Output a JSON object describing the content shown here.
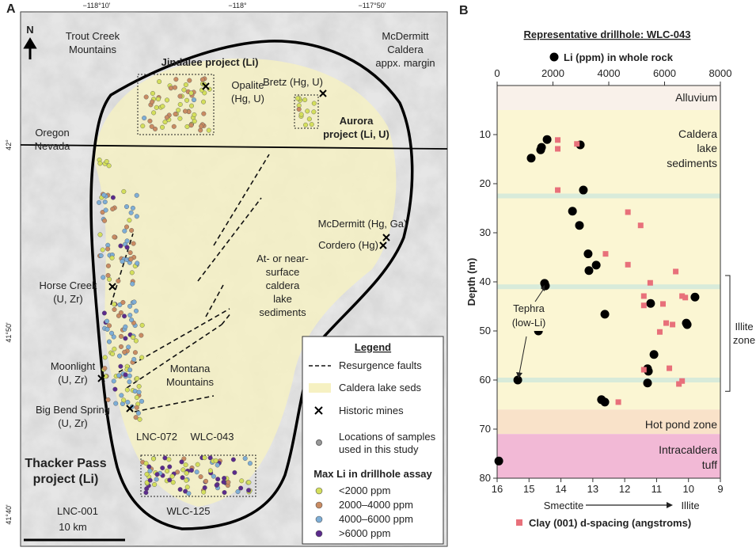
{
  "map": {
    "panel": "A",
    "lon_ticks": [
      "−118°10'",
      "−118°",
      "−117°50'"
    ],
    "lat_ticks": [
      "42°",
      "41°50'",
      "41°40'"
    ],
    "north": "N",
    "labels": [
      [
        "Trout Creek",
        "Mountains"
      ],
      [
        "Jindalee project (Li)"
      ],
      [
        "McDermitt",
        "Caldera",
        "appx. margin"
      ],
      [
        "Opalite",
        "(Hg, U)"
      ],
      [
        "Bretz (Hg, U)"
      ],
      [
        "Aurora",
        "project (Li, U)"
      ],
      [
        "Oregon",
        "Nevada"
      ],
      [
        "McDermitt (Hg, Ga)"
      ],
      [
        "Cordero (Hg)"
      ],
      [
        "At- or near-",
        "surface",
        "caldera",
        "lake",
        "sediments"
      ],
      [
        "Horse Creek",
        "(U, Zr)"
      ],
      [
        "Moonlight",
        "(U, Zr)"
      ],
      [
        "Montana",
        "Mountains"
      ],
      [
        "Big Bend Spring",
        "(U, Zr)"
      ],
      [
        "LNC-072"
      ],
      [
        "WLC-043"
      ],
      [
        "Thacker Pass",
        "project (Li)"
      ],
      [
        "LNC-001"
      ],
      [
        "WLC-125"
      ],
      [
        "10 km"
      ]
    ],
    "legend": {
      "title": "Legend",
      "items": [
        [
          "Resurgence faults"
        ],
        [
          "Caldera lake seds"
        ],
        [
          "Historic mines"
        ],
        [
          "Locations of samples",
          "used in this study"
        ]
      ],
      "assay_title": "Max Li in drillhole assay",
      "assay": [
        {
          "label": "<2000 ppm",
          "color": "#d4df5c"
        },
        {
          "label": "2000–4000 ppm",
          "color": "#c98b62"
        },
        {
          "label": "4000–6000 ppm",
          "color": "#7eaed6"
        },
        {
          "label": ">6000 ppm",
          "color": "#5b2b8c"
        }
      ]
    }
  },
  "chart_data": {
    "type": "scatter",
    "panel": "B",
    "title": "Representative drillhole: WLC-043",
    "y_label": "Depth (m)",
    "x2_note": [
      "Smectite",
      "Illite"
    ],
    "xlim": [
      0,
      8000
    ],
    "xticks": [
      0,
      2000,
      4000,
      6000,
      8000
    ],
    "x2lim": [
      16,
      9
    ],
    "x2ticks": [
      16,
      15,
      14,
      13,
      12,
      11,
      10,
      9
    ],
    "ylim": [
      80,
      0
    ],
    "yticks": [
      10,
      20,
      30,
      40,
      50,
      60,
      70,
      80
    ],
    "zones": [
      {
        "name": [
          "Alluvium"
        ],
        "range": [
          0,
          5
        ],
        "color": "#f9f1ea"
      },
      {
        "name": [
          "Caldera",
          "lake",
          "sediments"
        ],
        "range": [
          5,
          66
        ],
        "color": "#fbf6d3"
      },
      {
        "name": [
          "Hot pond zone"
        ],
        "range": [
          66,
          71
        ],
        "color": "#f9e2c9"
      },
      {
        "name": [
          "Intracaldera",
          "tuff"
        ],
        "range": [
          71,
          80
        ],
        "color": "#f2b9d6"
      }
    ],
    "illite_zone": {
      "label": [
        "Illite",
        "zone"
      ],
      "range": [
        38.7,
        62.3
      ]
    },
    "tephra_label": [
      "Tephra",
      "(low-Li)"
    ],
    "series": [
      {
        "name": "Li (ppm) in whole rock",
        "color": "#000000",
        "axis": "x",
        "x": [
          1790,
          1590,
          1560,
          1220,
          2980,
          3090,
          2700,
          2950,
          3260,
          3550,
          3290,
          1700,
          1730,
          7090,
          5500,
          3860,
          6780,
          6810,
          1480,
          5620,
          5390,
          5420,
          740,
          5390,
          3740,
          3860,
          60
        ],
        "y": [
          11.0,
          12.6,
          13.1,
          14.8,
          12.1,
          21.3,
          25.6,
          28.5,
          34.3,
          36.6,
          37.7,
          40.3,
          40.8,
          43.1,
          44.4,
          46.6,
          48.4,
          48.7,
          50.0,
          54.8,
          57.7,
          58.2,
          60.0,
          60.6,
          64.0,
          64.5,
          76.5
        ]
      },
      {
        "name": "Clay (001) d-spacing (angstroms)",
        "color": "#e8707a",
        "axis": "x2",
        "x": [
          14.1,
          14.1,
          13.5,
          14.1,
          11.9,
          11.5,
          12.6,
          11.9,
          10.4,
          11.2,
          11.4,
          10.2,
          10.1,
          10.8,
          11.4,
          10.7,
          10.5,
          10.9,
          11.4,
          10.6,
          10.2,
          10.3,
          12.2
        ],
        "y": [
          11.1,
          12.9,
          11.9,
          21.3,
          25.8,
          28.5,
          34.3,
          36.5,
          37.9,
          40.2,
          42.9,
          42.9,
          43.2,
          44.5,
          44.8,
          48.4,
          48.7,
          50.2,
          57.9,
          57.6,
          60.2,
          60.8,
          64.5
        ]
      }
    ]
  }
}
